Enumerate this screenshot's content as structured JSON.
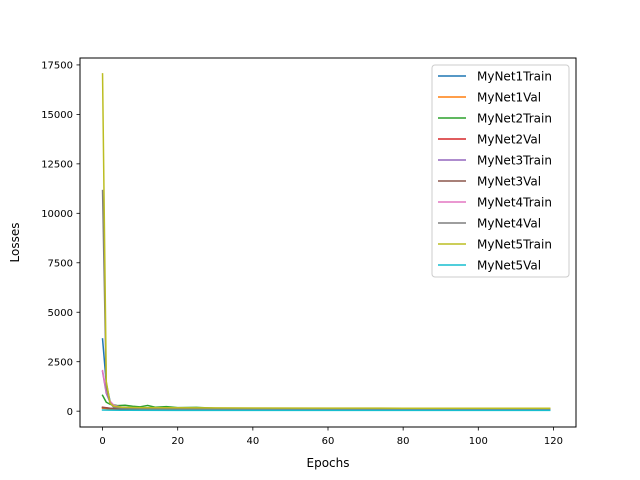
{
  "chart_data": {
    "type": "line",
    "title": "",
    "xlabel": "Epochs",
    "ylabel": "Losses",
    "xlim": [
      -6,
      126
    ],
    "ylim": [
      -800,
      17850
    ],
    "xticks": [
      0,
      20,
      40,
      60,
      80,
      100,
      120
    ],
    "yticks": [
      0,
      2500,
      5000,
      7500,
      10000,
      12500,
      15000,
      17500
    ],
    "grid": false,
    "legend_position": "top-right",
    "series": [
      {
        "name": "MyNet1Train",
        "color": "#1f77b4",
        "points": [
          [
            0,
            3650
          ],
          [
            1,
            1400
          ],
          [
            2,
            500
          ],
          [
            3,
            250
          ],
          [
            4,
            160
          ],
          [
            6,
            120
          ],
          [
            10,
            100
          ],
          [
            20,
            90
          ],
          [
            40,
            80
          ],
          [
            60,
            75
          ],
          [
            80,
            72
          ],
          [
            100,
            70
          ],
          [
            119,
            70
          ]
        ]
      },
      {
        "name": "MyNet1Val",
        "color": "#ff7f0e",
        "points": [
          [
            0,
            150
          ],
          [
            2,
            110
          ],
          [
            5,
            100
          ],
          [
            20,
            95
          ],
          [
            40,
            90
          ],
          [
            60,
            90
          ],
          [
            80,
            88
          ],
          [
            100,
            88
          ],
          [
            119,
            88
          ]
        ]
      },
      {
        "name": "MyNet2Train",
        "color": "#2ca02c",
        "points": [
          [
            0,
            800
          ],
          [
            1,
            450
          ],
          [
            2,
            350
          ],
          [
            4,
            280
          ],
          [
            6,
            300
          ],
          [
            8,
            250
          ],
          [
            10,
            220
          ],
          [
            12,
            290
          ],
          [
            14,
            200
          ],
          [
            17,
            230
          ],
          [
            20,
            180
          ],
          [
            25,
            190
          ],
          [
            30,
            150
          ],
          [
            40,
            140
          ],
          [
            60,
            130
          ],
          [
            80,
            125
          ],
          [
            100,
            120
          ],
          [
            119,
            120
          ]
        ]
      },
      {
        "name": "MyNet2Val",
        "color": "#d62728",
        "points": [
          [
            0,
            200
          ],
          [
            2,
            150
          ],
          [
            5,
            130
          ],
          [
            20,
            120
          ],
          [
            40,
            115
          ],
          [
            60,
            112
          ],
          [
            80,
            110
          ],
          [
            100,
            110
          ],
          [
            119,
            110
          ]
        ]
      },
      {
        "name": "MyNet3Train",
        "color": "#9467bd",
        "points": [
          [
            0,
            2000
          ],
          [
            1,
            900
          ],
          [
            2,
            450
          ],
          [
            3,
            300
          ],
          [
            5,
            180
          ],
          [
            10,
            130
          ],
          [
            20,
            110
          ],
          [
            40,
            100
          ],
          [
            60,
            95
          ],
          [
            80,
            92
          ],
          [
            100,
            90
          ],
          [
            119,
            90
          ]
        ]
      },
      {
        "name": "MyNet3Val",
        "color": "#8c564b",
        "points": [
          [
            0,
            180
          ],
          [
            2,
            140
          ],
          [
            5,
            120
          ],
          [
            20,
            110
          ],
          [
            40,
            105
          ],
          [
            60,
            102
          ],
          [
            80,
            100
          ],
          [
            100,
            100
          ],
          [
            119,
            100
          ]
        ]
      },
      {
        "name": "MyNet4Train",
        "color": "#e377c2",
        "points": [
          [
            0,
            2050
          ],
          [
            1,
            1000
          ],
          [
            2,
            500
          ],
          [
            3,
            300
          ],
          [
            5,
            200
          ],
          [
            10,
            140
          ],
          [
            20,
            115
          ],
          [
            40,
            105
          ],
          [
            60,
            100
          ],
          [
            80,
            98
          ],
          [
            100,
            95
          ],
          [
            119,
            95
          ]
        ]
      },
      {
        "name": "MyNet4Val",
        "color": "#7f7f7f",
        "points": [
          [
            0,
            11150
          ],
          [
            1,
            1200
          ],
          [
            2,
            400
          ],
          [
            3,
            200
          ],
          [
            5,
            150
          ],
          [
            10,
            130
          ],
          [
            20,
            120
          ],
          [
            40,
            115
          ],
          [
            60,
            112
          ],
          [
            80,
            110
          ],
          [
            100,
            110
          ],
          [
            119,
            110
          ]
        ]
      },
      {
        "name": "MyNet5Train",
        "color": "#bcbd22",
        "points": [
          [
            0,
            17050
          ],
          [
            1,
            1500
          ],
          [
            2,
            400
          ],
          [
            3,
            250
          ],
          [
            5,
            200
          ],
          [
            10,
            180
          ],
          [
            20,
            170
          ],
          [
            40,
            160
          ],
          [
            60,
            155
          ],
          [
            80,
            150
          ],
          [
            100,
            150
          ],
          [
            119,
            150
          ]
        ]
      },
      {
        "name": "MyNet5Val",
        "color": "#17becf",
        "points": [
          [
            0,
            60
          ],
          [
            2,
            50
          ],
          [
            5,
            45
          ],
          [
            20,
            40
          ],
          [
            40,
            40
          ],
          [
            60,
            40
          ],
          [
            80,
            40
          ],
          [
            100,
            40
          ],
          [
            119,
            40
          ]
        ]
      }
    ]
  }
}
